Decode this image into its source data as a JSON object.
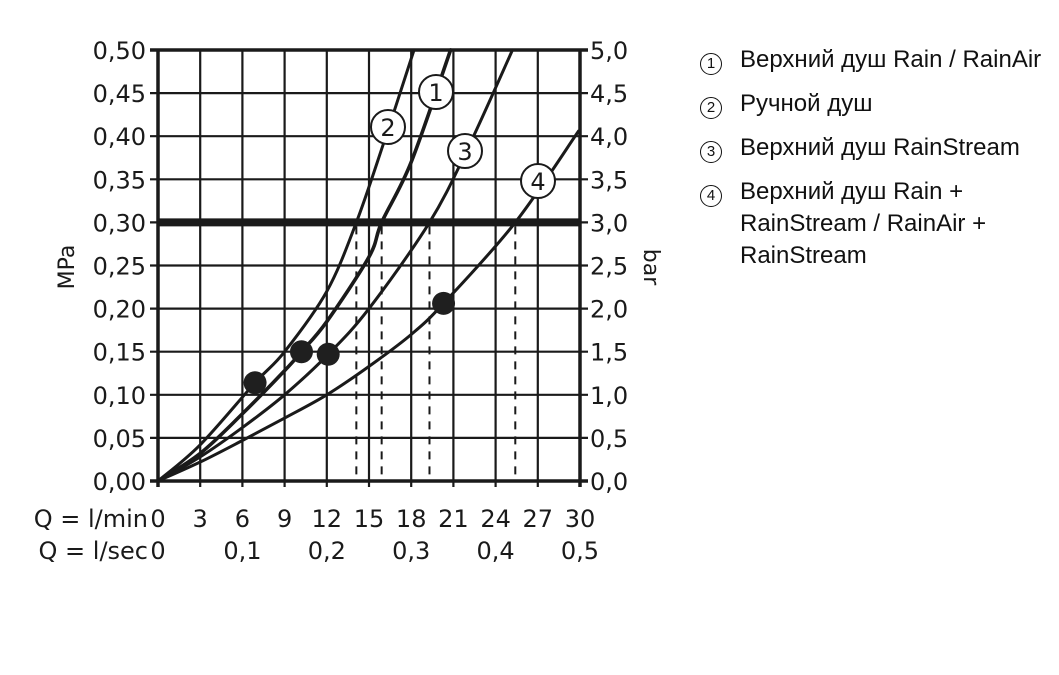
{
  "chart_data": {
    "type": "line",
    "title": "",
    "xlabel": "Q = l/min",
    "xlabel_secondary": "Q = l/sec",
    "ylabel": "MPa",
    "ylabel_right": "bar",
    "xlim": [
      0,
      30
    ],
    "ylim": [
      0,
      0.5
    ],
    "ylim_right": [
      0,
      5.0
    ],
    "grid": true,
    "x_ticks": [
      "0",
      "3",
      "6",
      "9",
      "12",
      "15",
      "18",
      "21",
      "24",
      "27",
      "30"
    ],
    "x_ticks_secondary": [
      "0",
      "0,1",
      "0,2",
      "0,3",
      "0,4",
      "0,5"
    ],
    "y_ticks": [
      "0,00",
      "0,05",
      "0,10",
      "0,15",
      "0,20",
      "0,25",
      "0,30",
      "0,35",
      "0,40",
      "0,45",
      "0,50"
    ],
    "y_ticks_right": [
      "0,0",
      "0,5",
      "1,0",
      "1,5",
      "2,0",
      "2,5",
      "3,0",
      "3,5",
      "4,0",
      "4,5",
      "5,0"
    ],
    "reference_line": {
      "y": 0.3,
      "label": "0,30 MPa / 3,0 bar"
    },
    "series": [
      {
        "name": "1",
        "label": "Верхний душ Rain / RainAir",
        "x": [
          0,
          3,
          6,
          9,
          10.2,
          12,
          15,
          15.9,
          18,
          20.8
        ],
        "y": [
          0,
          0.032,
          0.078,
          0.128,
          0.15,
          0.185,
          0.26,
          0.3,
          0.37,
          0.5
        ],
        "marker": {
          "x": 10.2,
          "y": 0.15
        },
        "dashed_drop_x": 15.9
      },
      {
        "name": "2",
        "label": "Ручной душ",
        "x": [
          0,
          3,
          6.9,
          9,
          12,
          14.1,
          16,
          18.2
        ],
        "y": [
          0,
          0.042,
          0.114,
          0.15,
          0.22,
          0.3,
          0.39,
          0.5
        ],
        "marker": {
          "x": 6.9,
          "y": 0.114
        },
        "dashed_drop_x": 14.1
      },
      {
        "name": "3",
        "label": "Верхний душ RainStream",
        "x": [
          0,
          3,
          6,
          9,
          12.1,
          15,
          19.3,
          22,
          25.2
        ],
        "y": [
          0,
          0.028,
          0.062,
          0.1,
          0.147,
          0.2,
          0.3,
          0.385,
          0.5
        ],
        "marker": {
          "x": 12.1,
          "y": 0.147
        },
        "dashed_drop_x": 19.3
      },
      {
        "name": "4",
        "label": "Верхний душ Rain + RainStream / RainAir + RainStream",
        "x": [
          0,
          3,
          6,
          9,
          12,
          15,
          18,
          20.3,
          25.4,
          29.9
        ],
        "y": [
          0,
          0.022,
          0.047,
          0.073,
          0.1,
          0.133,
          0.17,
          0.206,
          0.3,
          0.406
        ],
        "marker": {
          "x": 20.3,
          "y": 0.206
        },
        "dashed_drop_x": 25.4
      }
    ],
    "legend_position": "right"
  },
  "legend": {
    "items": [
      {
        "num": "1",
        "text": "Верхний душ Rain / RainAir"
      },
      {
        "num": "2",
        "text": "Ручной душ"
      },
      {
        "num": "3",
        "text": "Верхний душ RainStream"
      },
      {
        "num": "4",
        "text": "Верхний душ Rain + RainStream / RainAir + RainStream"
      }
    ]
  },
  "axes": {
    "x_label_min": "Q = l/min",
    "x_label_sec": "Q = l/sec",
    "y_left_label": "MPa",
    "y_right_label": "bar"
  }
}
